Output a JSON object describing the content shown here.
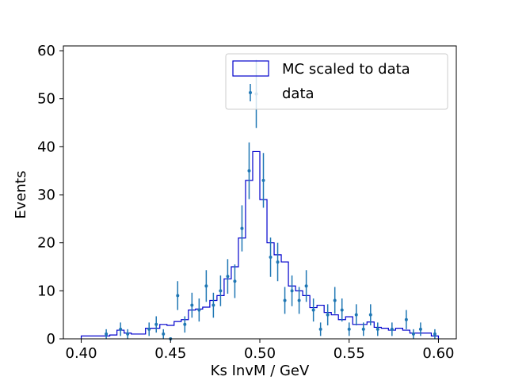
{
  "chart_data": {
    "type": "histogram",
    "xlabel": "Ks InvM / GeV",
    "ylabel": "Events",
    "xlim": [
      0.39,
      0.61
    ],
    "ylim": [
      0,
      61
    ],
    "xticks": [
      0.4,
      0.45,
      0.5,
      0.55,
      0.6
    ],
    "xtick_labels": [
      "0.40",
      "0.45",
      "0.50",
      "0.55",
      "0.60"
    ],
    "yticks": [
      0,
      10,
      20,
      30,
      40,
      50,
      60
    ],
    "ytick_labels": [
      "0",
      "10",
      "20",
      "30",
      "40",
      "50",
      "60"
    ],
    "grid": false,
    "legend_position": "top-right",
    "bin_edges": [
      0.4,
      0.404,
      0.408,
      0.412,
      0.416,
      0.42,
      0.424,
      0.428,
      0.432,
      0.436,
      0.44,
      0.444,
      0.448,
      0.452,
      0.456,
      0.46,
      0.464,
      0.468,
      0.472,
      0.476,
      0.48,
      0.484,
      0.488,
      0.492,
      0.496,
      0.5,
      0.504,
      0.508,
      0.512,
      0.516,
      0.52,
      0.524,
      0.528,
      0.532,
      0.536,
      0.54,
      0.544,
      0.548,
      0.552,
      0.556,
      0.56,
      0.564,
      0.568,
      0.572,
      0.576,
      0.58,
      0.584,
      0.588,
      0.592,
      0.596,
      0.6
    ],
    "series": [
      {
        "name": "MC scaled to data",
        "kind": "step",
        "color": "#0000cc",
        "values": [
          0.6,
          0.6,
          0.6,
          0.6,
          0.8,
          1.8,
          1.2,
          1.0,
          1.0,
          2.2,
          2.2,
          3.0,
          2.8,
          3.6,
          4.0,
          6.0,
          6.2,
          6.6,
          8.0,
          9.0,
          12.5,
          15.0,
          21.0,
          33.0,
          39.0,
          29.0,
          20.0,
          17.5,
          16.0,
          11.0,
          10.0,
          9.0,
          6.5,
          7.0,
          5.5,
          5.0,
          4.0,
          4.6,
          3.0,
          3.0,
          3.5,
          2.4,
          2.2,
          1.8,
          2.2,
          1.8,
          1.2,
          1.2,
          1.2,
          0.6
        ]
      },
      {
        "name": "data",
        "kind": "errorbar",
        "color": "#1f77b4",
        "x": [
          0.414,
          0.422,
          0.426,
          0.438,
          0.442,
          0.446,
          0.45,
          0.454,
          0.458,
          0.462,
          0.466,
          0.47,
          0.474,
          0.478,
          0.482,
          0.486,
          0.49,
          0.494,
          0.498,
          0.502,
          0.506,
          0.51,
          0.514,
          0.518,
          0.522,
          0.526,
          0.53,
          0.534,
          0.538,
          0.542,
          0.546,
          0.55,
          0.554,
          0.558,
          0.562,
          0.566,
          0.574,
          0.582,
          0.586,
          0.59,
          0.598
        ],
        "y": [
          1,
          2,
          1,
          2,
          3,
          1,
          0,
          9,
          3,
          7,
          6,
          11,
          7,
          10,
          13,
          12,
          23,
          35,
          51,
          33,
          17,
          16,
          8,
          10,
          8,
          11,
          6,
          2,
          5,
          8,
          6,
          2,
          5,
          2,
          5,
          2,
          2,
          4,
          1,
          2,
          1
        ],
        "yerr": [
          1.0,
          1.4,
          1.0,
          1.4,
          1.7,
          1.0,
          0,
          3.0,
          1.7,
          2.6,
          2.4,
          3.3,
          2.6,
          3.2,
          3.6,
          3.5,
          4.8,
          5.9,
          7.1,
          5.7,
          4.1,
          4.0,
          2.8,
          3.2,
          2.8,
          3.3,
          2.4,
          1.4,
          2.2,
          2.8,
          2.4,
          1.4,
          2.2,
          1.4,
          2.2,
          1.4,
          1.4,
          2.0,
          1.0,
          1.4,
          1.0
        ]
      }
    ]
  }
}
